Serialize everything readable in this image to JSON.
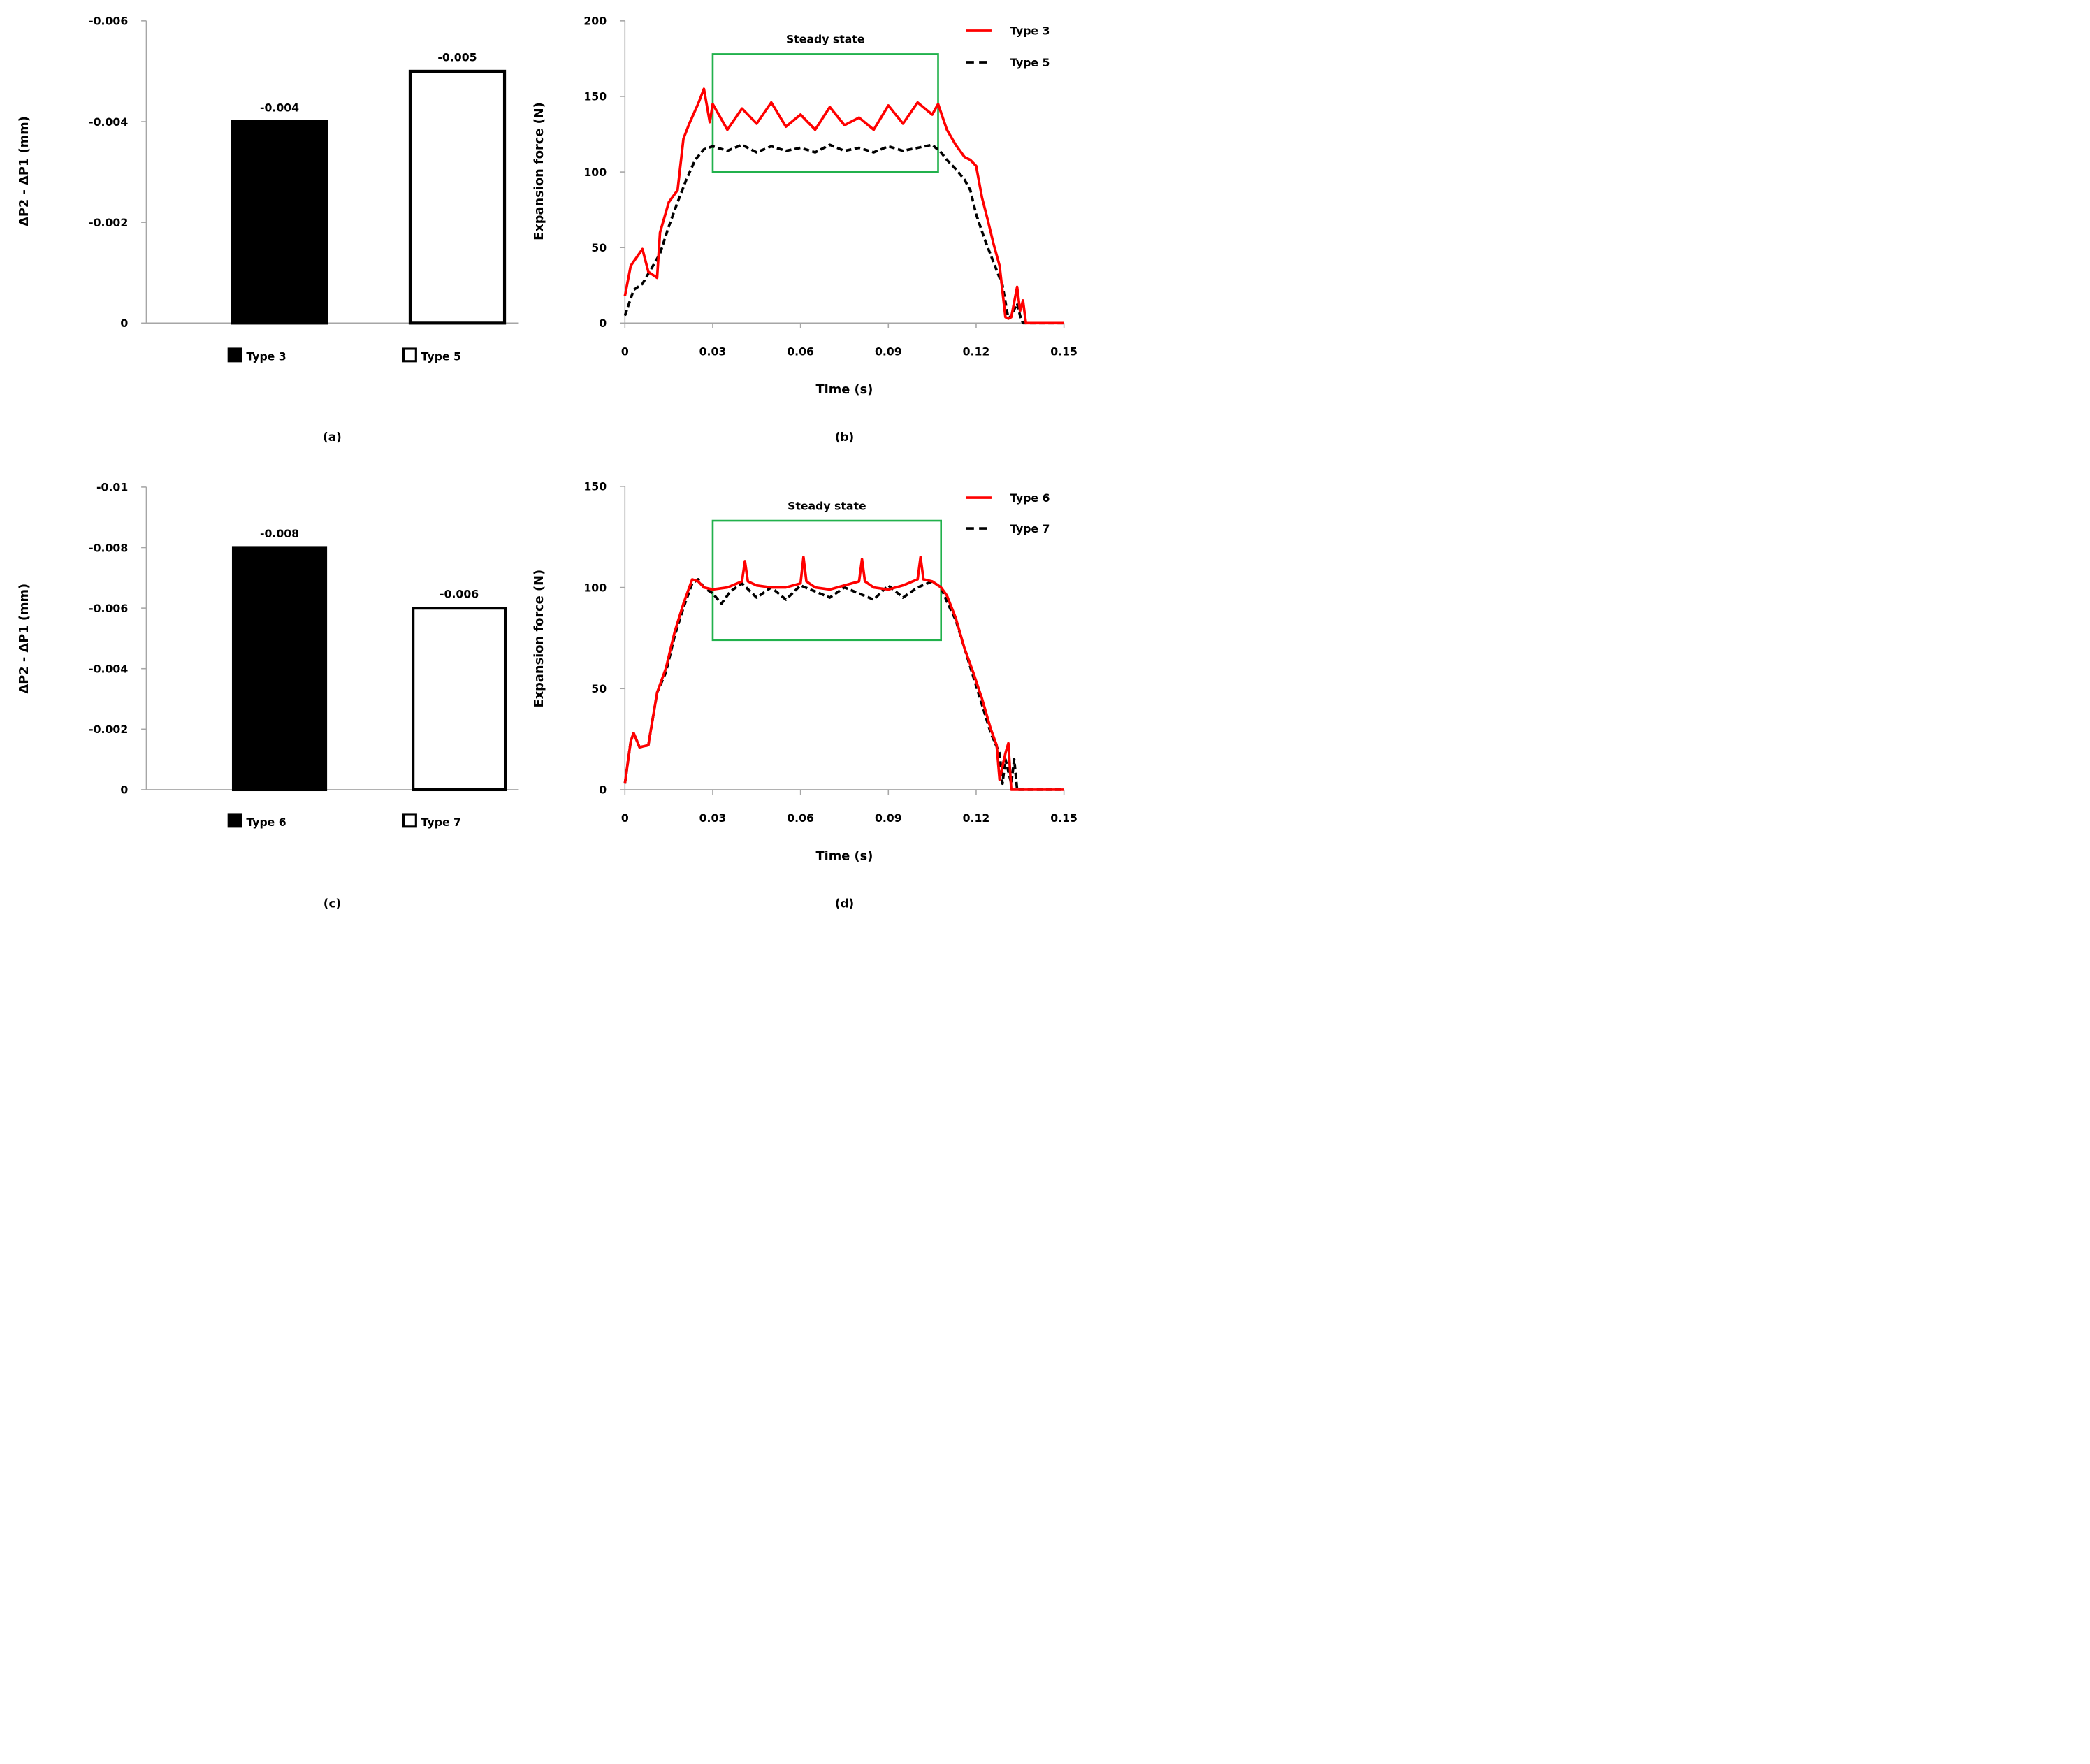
{
  "chart_data": [
    {
      "panel": "(a)",
      "type": "bar",
      "ylabel": "ΔP2 - ΔP1 (mm)",
      "ylim": [
        0,
        -0.006
      ],
      "yticks": [
        "0",
        "-0.002",
        "-0.004",
        "-0.006"
      ],
      "categories": [
        "Type 3",
        "Type 5"
      ],
      "values": [
        -0.004,
        -0.005
      ],
      "value_labels": [
        "-0.004",
        "-0.005"
      ],
      "fills": [
        "#000000",
        "#ffffff"
      ]
    },
    {
      "panel": "(b)",
      "type": "line",
      "xlabel": "Time (s)",
      "ylabel": "Expansion force (N)",
      "xlim": [
        0,
        0.15
      ],
      "ylim": [
        0,
        200
      ],
      "xticks": [
        "0",
        "0.03",
        "0.06",
        "0.09",
        "0.12",
        "0.15"
      ],
      "yticks": [
        "0",
        "50",
        "100",
        "150",
        "200"
      ],
      "annotation": "Steady state",
      "steady_box": {
        "x0": 0.03,
        "x1": 0.107,
        "y0": 100,
        "y1": 178
      },
      "series": [
        {
          "name": "Type 3",
          "color": "#ff0000",
          "dash": "solid",
          "x": [
            0,
            0.002,
            0.006,
            0.008,
            0.011,
            0.012,
            0.015,
            0.018,
            0.02,
            0.022,
            0.025,
            0.027,
            0.029,
            0.03,
            0.035,
            0.04,
            0.045,
            0.05,
            0.055,
            0.06,
            0.065,
            0.07,
            0.075,
            0.08,
            0.085,
            0.09,
            0.095,
            0.1,
            0.105,
            0.107,
            0.11,
            0.113,
            0.116,
            0.118,
            0.12,
            0.122,
            0.124,
            0.126,
            0.128,
            0.13,
            0.131,
            0.132,
            0.134,
            0.135,
            0.136,
            0.137,
            0.15
          ],
          "y": [
            18,
            38,
            49,
            34,
            30,
            60,
            80,
            88,
            122,
            132,
            145,
            155,
            133,
            145,
            128,
            142,
            132,
            146,
            130,
            138,
            128,
            143,
            131,
            136,
            128,
            144,
            132,
            146,
            138,
            145,
            128,
            118,
            110,
            108,
            104,
            83,
            68,
            52,
            38,
            4,
            3,
            4,
            24,
            8,
            15,
            0,
            0
          ]
        },
        {
          "name": "Type 5",
          "color": "#000000",
          "dash": "dashed",
          "x": [
            0,
            0.003,
            0.006,
            0.009,
            0.012,
            0.015,
            0.018,
            0.021,
            0.024,
            0.027,
            0.03,
            0.035,
            0.04,
            0.045,
            0.05,
            0.055,
            0.06,
            0.065,
            0.07,
            0.075,
            0.08,
            0.085,
            0.09,
            0.095,
            0.1,
            0.105,
            0.108,
            0.11,
            0.113,
            0.116,
            0.118,
            0.12,
            0.123,
            0.126,
            0.129,
            0.131,
            0.132,
            0.134,
            0.135,
            0.136,
            0.15
          ],
          "y": [
            5,
            22,
            26,
            36,
            46,
            64,
            80,
            95,
            108,
            115,
            117,
            114,
            118,
            113,
            117,
            114,
            116,
            113,
            118,
            114,
            116,
            113,
            117,
            114,
            116,
            118,
            113,
            108,
            102,
            95,
            88,
            72,
            55,
            40,
            25,
            3,
            5,
            13,
            5,
            0,
            0
          ]
        }
      ]
    },
    {
      "panel": "(c)",
      "type": "bar",
      "ylabel": "ΔP2 - ΔP1 (mm)",
      "ylim": [
        0,
        -0.01
      ],
      "yticks": [
        "0",
        "-0.002",
        "-0.004",
        "-0.006",
        "-0.008",
        "-0.01"
      ],
      "categories": [
        "Type 6",
        "Type 7"
      ],
      "values": [
        -0.008,
        -0.006
      ],
      "value_labels": [
        "-0.008",
        "-0.006"
      ],
      "fills": [
        "#000000",
        "#ffffff"
      ]
    },
    {
      "panel": "(d)",
      "type": "line",
      "xlabel": "Time (s)",
      "ylabel": "Expansion force (N)",
      "xlim": [
        0,
        0.15
      ],
      "ylim": [
        0,
        150
      ],
      "xticks": [
        "0",
        "0.03",
        "0.06",
        "0.09",
        "0.12",
        "0.15"
      ],
      "yticks": [
        "0",
        "50",
        "100",
        "150"
      ],
      "annotation": "Steady state",
      "steady_box": {
        "x0": 0.03,
        "x1": 0.108,
        "y0": 74,
        "y1": 133
      },
      "series": [
        {
          "name": "Type 6",
          "color": "#ff0000",
          "dash": "solid",
          "x": [
            0,
            0.002,
            0.003,
            0.005,
            0.008,
            0.011,
            0.014,
            0.017,
            0.02,
            0.023,
            0.025,
            0.027,
            0.03,
            0.035,
            0.04,
            0.041,
            0.042,
            0.045,
            0.05,
            0.055,
            0.06,
            0.061,
            0.062,
            0.065,
            0.07,
            0.075,
            0.08,
            0.081,
            0.082,
            0.085,
            0.09,
            0.095,
            0.1,
            0.101,
            0.102,
            0.105,
            0.108,
            0.11,
            0.113,
            0.116,
            0.119,
            0.122,
            0.125,
            0.127,
            0.128,
            0.13,
            0.131,
            0.132,
            0.15
          ],
          "y": [
            3,
            24,
            28,
            21,
            22,
            48,
            60,
            78,
            92,
            104,
            103,
            100,
            99,
            100,
            103,
            113,
            103,
            101,
            100,
            100,
            102,
            115,
            103,
            100,
            99,
            101,
            103,
            114,
            103,
            100,
            99,
            101,
            104,
            115,
            104,
            103,
            100,
            96,
            85,
            70,
            58,
            45,
            30,
            22,
            5,
            18,
            23,
            0,
            0
          ]
        },
        {
          "name": "Type 7",
          "color": "#000000",
          "dash": "dashed",
          "x": [
            0,
            0.002,
            0.003,
            0.005,
            0.008,
            0.011,
            0.014,
            0.017,
            0.02,
            0.023,
            0.025,
            0.027,
            0.03,
            0.033,
            0.036,
            0.04,
            0.045,
            0.05,
            0.055,
            0.06,
            0.065,
            0.07,
            0.075,
            0.08,
            0.085,
            0.09,
            0.095,
            0.1,
            0.105,
            0.108,
            0.11,
            0.113,
            0.116,
            0.119,
            0.122,
            0.125,
            0.128,
            0.129,
            0.13,
            0.132,
            0.133,
            0.134,
            0.15
          ],
          "y": [
            3,
            24,
            28,
            21,
            22,
            48,
            58,
            76,
            90,
            102,
            104,
            100,
            97,
            92,
            98,
            102,
            95,
            100,
            94,
            101,
            98,
            95,
            100,
            97,
            94,
            101,
            95,
            100,
            103,
            100,
            93,
            84,
            70,
            56,
            42,
            28,
            18,
            3,
            15,
            3,
            15,
            0,
            0
          ]
        }
      ]
    }
  ]
}
